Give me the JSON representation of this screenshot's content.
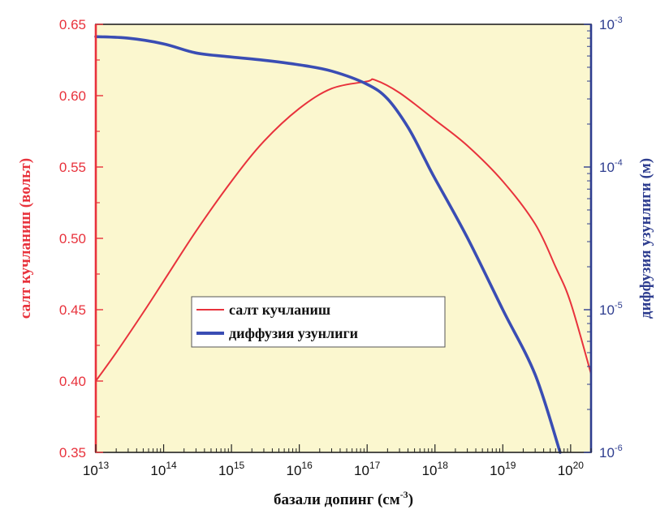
{
  "chart_data": {
    "type": "line",
    "xlabel": "базали допинг (см",
    "xlabel_sup": "-3",
    "xlabel_end": ")",
    "ylabel_left": "салт кучланиш (вольт)",
    "ylabel_right": "диффузия узунлиги (м)",
    "x_scale": "log",
    "xlim": [
      10000000000000.0,
      2e+20
    ],
    "x_ticks": [
      {
        "value": 10000000000000.0,
        "base": "10",
        "exp": "13"
      },
      {
        "value": 100000000000000.0,
        "base": "10",
        "exp": "14"
      },
      {
        "value": 1000000000000000.0,
        "base": "10",
        "exp": "15"
      },
      {
        "value": 1e+16,
        "base": "10",
        "exp": "16"
      },
      {
        "value": 1e+17,
        "base": "10",
        "exp": "17"
      },
      {
        "value": 1e+18,
        "base": "10",
        "exp": "18"
      },
      {
        "value": 1e+19,
        "base": "10",
        "exp": "19"
      },
      {
        "value": 1e+20,
        "base": "10",
        "exp": "20"
      }
    ],
    "y_left": {
      "lim": [
        0.35,
        0.65
      ],
      "ticks": [
        "0.35",
        "0.40",
        "0.45",
        "0.50",
        "0.55",
        "0.60",
        "0.65"
      ]
    },
    "y_right": {
      "scale": "log",
      "lim": [
        1e-06,
        0.001
      ],
      "ticks": [
        {
          "value": 0.001,
          "base": "10",
          "exp": "-3"
        },
        {
          "value": 0.0001,
          "base": "10",
          "exp": "-4"
        },
        {
          "value": 1e-05,
          "base": "10",
          "exp": "-5"
        },
        {
          "value": 1e-06,
          "base": "10",
          "exp": "-6"
        }
      ]
    },
    "series": [
      {
        "name": "салт кучланиш",
        "axis": "left",
        "color": "#e8323c",
        "points": [
          [
            10000000000000.0,
            0.4
          ],
          [
            20000000000000.0,
            0.42
          ],
          [
            50000000000000.0,
            0.448
          ],
          [
            100000000000000.0,
            0.47
          ],
          [
            300000000000000.0,
            0.505
          ],
          [
            1000000000000000.0,
            0.54
          ],
          [
            3000000000000000.0,
            0.568
          ],
          [
            1e+16,
            0.591
          ],
          [
            3e+16,
            0.605
          ],
          [
            1e+17,
            0.61
          ],
          [
            1.3e+17,
            0.611
          ],
          [
            3e+17,
            0.602
          ],
          [
            1e+18,
            0.583
          ],
          [
            3e+18,
            0.565
          ],
          [
            1e+19,
            0.54
          ],
          [
            3e+19,
            0.51
          ],
          [
            6e+19,
            0.48
          ],
          [
            1e+20,
            0.455
          ],
          [
            2e+20,
            0.405
          ]
        ]
      },
      {
        "name": "диффузия узунлиги",
        "axis": "right",
        "color": "#3a4db4",
        "points": [
          [
            10000000000000.0,
            0.00082
          ],
          [
            30000000000000.0,
            0.0008
          ],
          [
            100000000000000.0,
            0.00073
          ],
          [
            300000000000000.0,
            0.00063
          ],
          [
            1000000000000000.0,
            0.00059
          ],
          [
            3000000000000000.0,
            0.00056
          ],
          [
            1e+16,
            0.00052
          ],
          [
            3e+16,
            0.00047
          ],
          [
            1e+17,
            0.00038
          ],
          [
            2e+17,
            0.0003
          ],
          [
            4e+17,
            0.00019
          ],
          [
            7e+17,
            0.000115
          ],
          [
            1e+18,
            8.3e-05
          ],
          [
            3e+18,
            3.2e-05
          ],
          [
            1e+19,
            1e-05
          ],
          [
            3e+19,
            3.5e-06
          ],
          [
            7e+19,
            1e-06
          ]
        ]
      }
    ],
    "legend_position": "center-left"
  }
}
